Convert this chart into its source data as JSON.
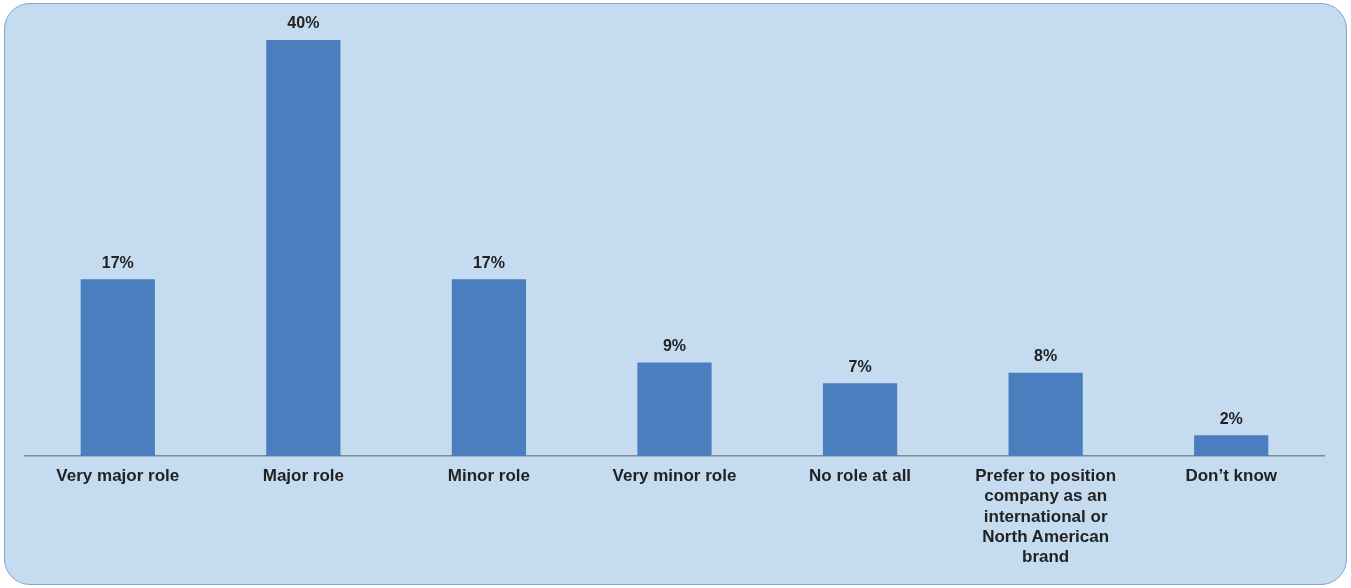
{
  "chart_data": {
    "type": "bar",
    "categories": [
      "Very major role",
      "Major role",
      "Minor role",
      "Very minor role",
      "No role at all",
      "Prefer to position company as an international or North American brand",
      "Don’t know"
    ],
    "values": [
      17,
      40,
      17,
      9,
      7,
      8,
      2
    ],
    "value_labels": [
      "17%",
      "40%",
      "17%",
      "9%",
      "7%",
      "8%",
      "2%"
    ],
    "color": "#4a7ebf",
    "tick_labels": "x",
    "grid": false,
    "legend": false
  }
}
